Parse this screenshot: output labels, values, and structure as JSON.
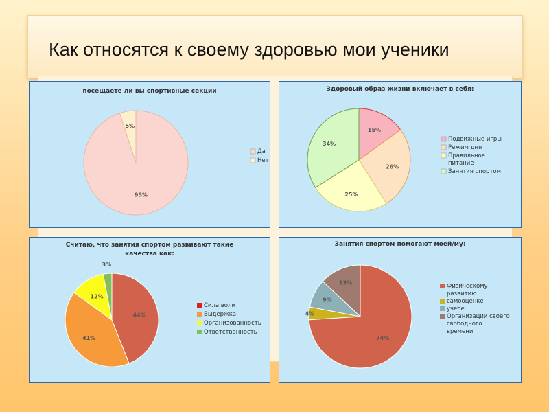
{
  "page": {
    "title": "Как относятся к своему здоровью мои ученики"
  },
  "chart_data": [
    {
      "type": "pie",
      "title": "посещаете ли вы спортивные секции",
      "categories": [
        "Да",
        "Нет"
      ],
      "values": [
        95,
        5
      ],
      "labels": [
        "95%",
        "5%"
      ],
      "colors": [
        "#fbd5d0",
        "#fdf0cc"
      ],
      "legend": "right"
    },
    {
      "type": "pie",
      "title": "Здоровый образ жизни включает в себя:",
      "categories": [
        "Подвижные игры",
        "Режим дня",
        "Правильное питание",
        "Занятия спортом"
      ],
      "legend_lines": [
        [
          "Подвижные игры"
        ],
        [
          "Режим дня"
        ],
        [
          "Правильное",
          "питание"
        ],
        [
          "Занятия спортом"
        ]
      ],
      "values": [
        15,
        26,
        25,
        34
      ],
      "labels": [
        "15%",
        "26%",
        "25%",
        "34%"
      ],
      "colors": [
        "#f9b3bc",
        "#fde3c2",
        "#feffc4",
        "#d6f9c4"
      ],
      "legend": "right"
    },
    {
      "type": "pie",
      "title_lines": [
        "Считаю, что занятия спортом развивают такие",
        "качества как:"
      ],
      "categories": [
        "Сила воли",
        "Выдержка",
        "Организованность",
        "Ответственность"
      ],
      "values": [
        44,
        41,
        12,
        3
      ],
      "labels": [
        "44%",
        "41%",
        "12%",
        "3%"
      ],
      "colors": [
        "#d1634c",
        "#f79a3a",
        "#fbfd18",
        "#82bf58"
      ],
      "legend_colors": [
        "#e41b1b",
        "#f79a3a",
        "#fbfd18",
        "#82bf58"
      ],
      "legend": "right"
    },
    {
      "type": "pie",
      "title": "Занятия спортом помогают моей/му:",
      "categories": [
        "Физическому развитию",
        "самооценке",
        "учебе",
        "Организации своего свободного времени"
      ],
      "legend_lines": [
        [
          "Физическому",
          "развитию"
        ],
        [
          "самооценке"
        ],
        [
          "учебе"
        ],
        [
          "Организации своего",
          "свободного",
          "времени"
        ]
      ],
      "values": [
        74,
        4,
        9,
        13
      ],
      "labels": [
        "74%",
        "4%",
        "9%",
        "13%"
      ],
      "colors": [
        "#d1634c",
        "#cab31c",
        "#8cb0b8",
        "#9f7a6e"
      ],
      "legend": "right"
    }
  ]
}
